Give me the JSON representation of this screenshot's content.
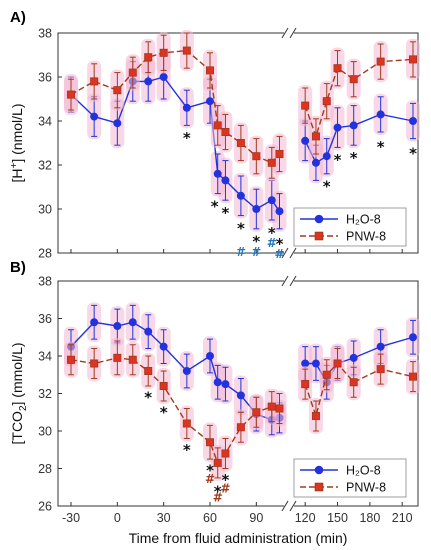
{
  "colors": {
    "h2o": "#2233dd",
    "pnw": "#a33a1a",
    "pnw_marker": "#dd3322",
    "halo": "#f2b6d2",
    "star": "#111111",
    "hash_a": "#2277bb",
    "hash_b": "#a33a1a"
  },
  "x_axis": {
    "label": "Time from fluid administration (min)",
    "ticks": [
      "-30",
      "0",
      "30",
      "60",
      "90",
      "120",
      "150",
      "180",
      "210"
    ]
  },
  "chart_data": [
    {
      "type": "line",
      "panel_label": "A)",
      "ylabel": "[H⁺] (nmol/L)",
      "ylabel_base": "[H",
      "ylabel_sup": "+",
      "ylabel_rest": "] (nmol/L)",
      "ylim": [
        28,
        38
      ],
      "yticks": [
        "28",
        "30",
        "32",
        "34",
        "36",
        "38"
      ],
      "series": [
        {
          "name": "H₂O-8",
          "x": [
            -30,
            -15,
            0,
            10,
            20,
            30,
            45,
            60,
            65,
            70,
            80,
            90,
            100,
            105,
            120,
            130,
            140,
            150,
            165,
            190,
            220
          ],
          "y": [
            35.2,
            34.2,
            33.9,
            35.8,
            35.8,
            36.0,
            34.6,
            34.9,
            31.6,
            31.3,
            30.6,
            30.0,
            30.4,
            29.9,
            33.1,
            32.1,
            32.4,
            33.7,
            33.8,
            34.3,
            34.0
          ],
          "err": [
            0.8,
            0.9,
            1.0,
            0.9,
            0.9,
            1.0,
            0.8,
            1.0,
            0.9,
            0.9,
            0.9,
            0.9,
            0.9,
            0.8,
            0.9,
            0.8,
            0.8,
            0.9,
            0.9,
            0.8,
            0.8
          ]
        },
        {
          "name": "PNW-8",
          "x": [
            -30,
            -15,
            0,
            10,
            20,
            30,
            45,
            60,
            65,
            70,
            80,
            90,
            100,
            105,
            120,
            130,
            140,
            150,
            165,
            190,
            220
          ],
          "y": [
            35.2,
            35.8,
            35.4,
            36.2,
            36.9,
            37.1,
            37.2,
            36.3,
            33.8,
            33.5,
            33.0,
            32.4,
            32.1,
            32.5,
            34.7,
            33.3,
            34.9,
            36.4,
            35.9,
            36.7,
            36.8
          ],
          "err": [
            0.7,
            0.8,
            0.8,
            0.7,
            0.7,
            0.8,
            0.8,
            0.8,
            0.9,
            0.8,
            0.8,
            0.8,
            0.7,
            0.8,
            0.8,
            0.8,
            0.8,
            0.8,
            0.8,
            0.8,
            0.8
          ]
        }
      ],
      "annotations": [
        {
          "x": 45,
          "y": 33.4,
          "text": "*"
        },
        {
          "x": 63,
          "y": 30.3,
          "text": "*"
        },
        {
          "x": 70,
          "y": 30.0,
          "text": "*"
        },
        {
          "x": 80,
          "y": 29.3,
          "text": "*"
        },
        {
          "x": 90,
          "y": 28.7,
          "text": "*"
        },
        {
          "x": 100,
          "y": 29.1,
          "text": "*"
        },
        {
          "x": 105,
          "y": 28.6,
          "text": "*"
        },
        {
          "x": 140,
          "y": 31.2,
          "text": "*"
        },
        {
          "x": 150,
          "y": 32.4,
          "text": "*"
        },
        {
          "x": 165,
          "y": 32.5,
          "text": "*"
        },
        {
          "x": 190,
          "y": 33.0,
          "text": "*"
        },
        {
          "x": 220,
          "y": 32.7,
          "text": "*"
        }
      ],
      "hashes": [
        {
          "x": 80,
          "y": 28.1,
          "text": "#"
        },
        {
          "x": 90,
          "y": 28.1,
          "text": "#"
        },
        {
          "x": 100,
          "y": 28.5,
          "text": "#"
        },
        {
          "x": 105,
          "y": 28.0,
          "text": "#"
        }
      ]
    },
    {
      "type": "line",
      "panel_label": "B)",
      "ylabel": "[TCO₂] (mmol/L)",
      "ylabel_base": "[TCO",
      "ylabel_sub": "2",
      "ylabel_rest": "] (mmol/L)",
      "ylim": [
        26,
        38
      ],
      "yticks": [
        "26",
        "28",
        "30",
        "32",
        "34",
        "36",
        "38"
      ],
      "series": [
        {
          "name": "H₂O-8",
          "x": [
            -30,
            -15,
            0,
            10,
            20,
            30,
            45,
            60,
            65,
            70,
            80,
            90,
            100,
            105,
            120,
            130,
            140,
            150,
            165,
            190,
            220
          ],
          "y": [
            34.5,
            35.8,
            35.6,
            35.8,
            35.3,
            34.5,
            33.2,
            34.0,
            32.6,
            32.5,
            31.9,
            30.9,
            30.6,
            30.7,
            33.6,
            33.6,
            32.6,
            33.6,
            33.9,
            34.5,
            35.0
          ],
          "err": [
            0.9,
            0.9,
            0.9,
            0.9,
            0.9,
            0.9,
            0.9,
            0.9,
            0.9,
            0.9,
            0.9,
            0.9,
            0.8,
            0.8,
            0.9,
            0.9,
            0.9,
            0.9,
            0.9,
            0.9,
            0.9
          ]
        },
        {
          "name": "PNW-8",
          "x": [
            -30,
            -15,
            0,
            10,
            20,
            30,
            45,
            60,
            65,
            70,
            80,
            90,
            100,
            105,
            120,
            130,
            140,
            150,
            165,
            190,
            220
          ],
          "y": [
            33.8,
            33.6,
            33.9,
            33.8,
            33.2,
            32.4,
            30.4,
            29.4,
            28.3,
            28.8,
            30.2,
            31.0,
            31.3,
            31.2,
            32.5,
            30.8,
            33.0,
            33.6,
            32.6,
            33.3,
            32.9
          ],
          "err": [
            0.8,
            0.8,
            0.9,
            0.8,
            0.8,
            0.8,
            0.8,
            0.9,
            0.8,
            0.8,
            0.8,
            0.8,
            0.8,
            0.8,
            0.8,
            0.8,
            0.8,
            0.8,
            0.8,
            0.8,
            0.8
          ]
        }
      ],
      "annotations": [
        {
          "x": 20,
          "y": 32.0,
          "text": "*"
        },
        {
          "x": 30,
          "y": 31.2,
          "text": "*"
        },
        {
          "x": 45,
          "y": 29.2,
          "text": "*"
        },
        {
          "x": 60,
          "y": 28.1,
          "text": "*"
        },
        {
          "x": 65,
          "y": 27.0,
          "text": "*"
        },
        {
          "x": 70,
          "y": 27.6,
          "text": "*"
        }
      ],
      "hashes": [
        {
          "x": 60,
          "y": 27.5,
          "text": "#"
        },
        {
          "x": 65,
          "y": 26.5,
          "text": "#"
        },
        {
          "x": 70,
          "y": 27.0,
          "text": "#"
        }
      ]
    }
  ]
}
